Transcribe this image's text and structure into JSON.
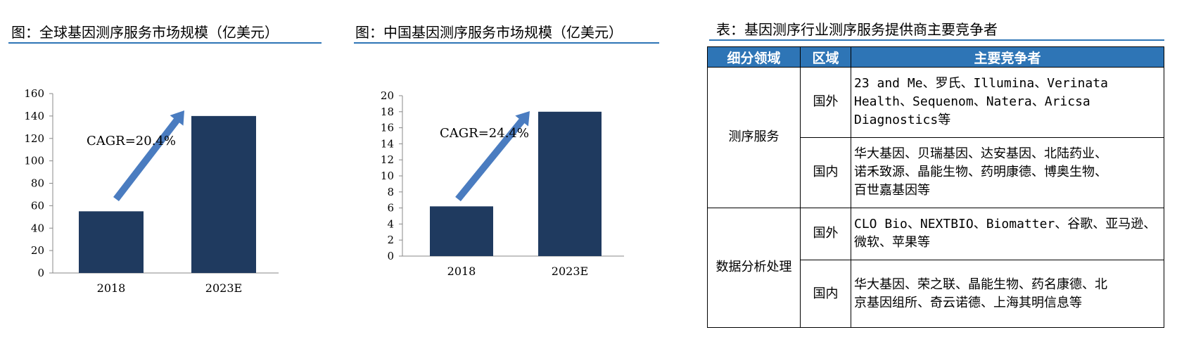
{
  "left_panel": {
    "title": "图：全球基因测序服务市场规模（亿美元）",
    "cagr": "CAGR=20.4%"
  },
  "middle_panel": {
    "title": "图：中国基因测序服务市场规模（亿美元）",
    "cagr": "CAGR=24.4%"
  },
  "right_panel": {
    "title": "表：基因测序行业测序服务提供商主要竞争者",
    "headers": [
      "细分领域",
      "区域",
      "主要竞争者"
    ],
    "groups": [
      {
        "segment": "测序服务",
        "rows": [
          {
            "region": "国外",
            "competitors": [
              "23 and Me、罗氏、Illumina、Verinata",
              "Health、Sequenom、Natera、Aricsa",
              "Diagnostics等"
            ]
          },
          {
            "region": "国内",
            "competitors": [
              "华大基因、贝瑞基因、达安基因、北陆药业、",
              "诺禾致源、晶能生物、药明康德、博奥生物、",
              "百世嘉基因等"
            ]
          }
        ]
      },
      {
        "segment": "数据分析处理",
        "rows": [
          {
            "region": "国外",
            "competitors": [
              "CLO Bio、NEXTBIO、Biomatter、谷歌、亚马逊、",
              "微软、苹果等"
            ]
          },
          {
            "region": "国内",
            "competitors": [
              "华大基因、荣之联、晶能生物、药名康德、北",
              "京基因组所、奇云诺德、上海其明信息等"
            ]
          }
        ]
      }
    ]
  },
  "chart_data": [
    {
      "type": "bar",
      "title": "图：全球基因测序服务市场规模（亿美元）",
      "categories": [
        "2018",
        "2023E"
      ],
      "values": [
        55,
        140
      ],
      "ylim": [
        0,
        160
      ],
      "yticks": [
        "0",
        "20",
        "40",
        "60",
        "80",
        "100",
        "120",
        "140",
        "160"
      ],
      "annotation": "CAGR=20.4%",
      "bar_color": "#1f3a5f",
      "arrow_color": "#4a7cc0",
      "grid": false
    },
    {
      "type": "bar",
      "title": "图：中国基因测序服务市场规模（亿美元）",
      "categories": [
        "2018",
        "2023E"
      ],
      "values": [
        6.2,
        18
      ],
      "ylim": [
        0,
        20
      ],
      "yticks": [
        "0",
        "2",
        "4",
        "6",
        "8",
        "10",
        "12",
        "14",
        "16",
        "18",
        "20"
      ],
      "annotation": "CAGR=24.4%",
      "bar_color": "#1f3a5f",
      "arrow_color": "#4a7cc0",
      "grid": false
    }
  ]
}
